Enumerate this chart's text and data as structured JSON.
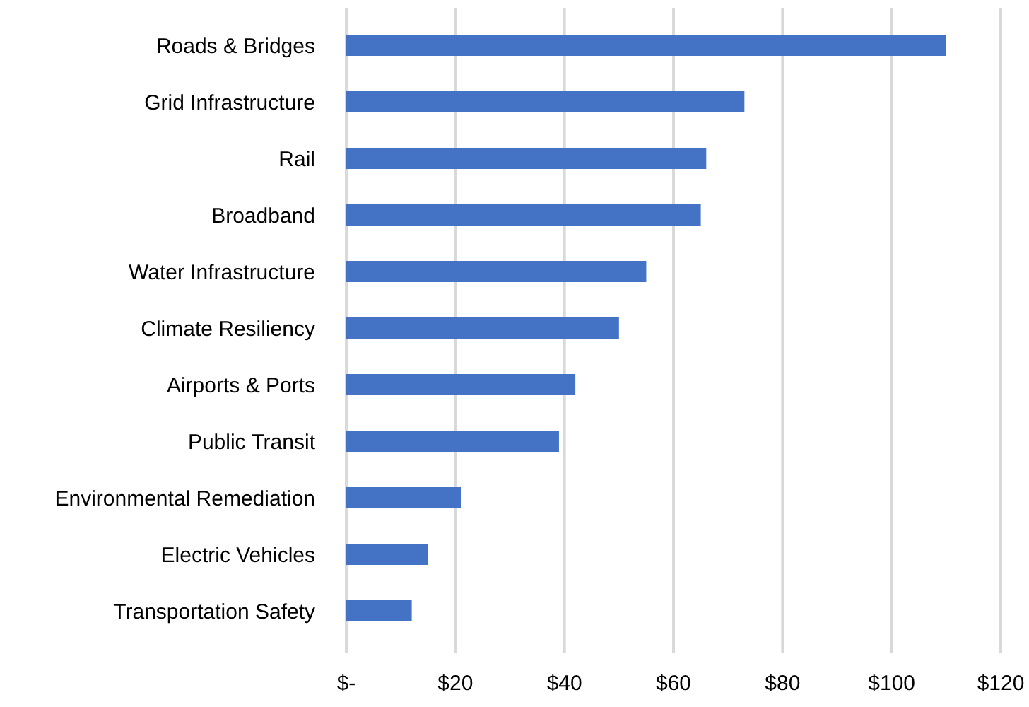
{
  "chart_data": {
    "type": "bar",
    "orientation": "horizontal",
    "categories": [
      "Roads & Bridges",
      "Grid Infrastructure",
      "Rail",
      "Broadband",
      "Water Infrastructure",
      "Climate Resiliency",
      "Airports & Ports",
      "Public Transit",
      "Environmental Remediation",
      "Electric Vehicles",
      "Transportation Safety"
    ],
    "values": [
      110,
      73,
      66,
      65,
      55,
      50,
      42,
      39,
      21,
      15,
      12
    ],
    "color": "#4472c4",
    "xlim": [
      0,
      120
    ],
    "xticks": [
      {
        "value": 0,
        "label": "$-"
      },
      {
        "value": 20,
        "label": "$20"
      },
      {
        "value": 40,
        "label": "$40"
      },
      {
        "value": 60,
        "label": "$60"
      },
      {
        "value": 80,
        "label": "$80"
      },
      {
        "value": 100,
        "label": "$100"
      },
      {
        "value": 120,
        "label": "$120"
      }
    ],
    "grid": "x"
  }
}
